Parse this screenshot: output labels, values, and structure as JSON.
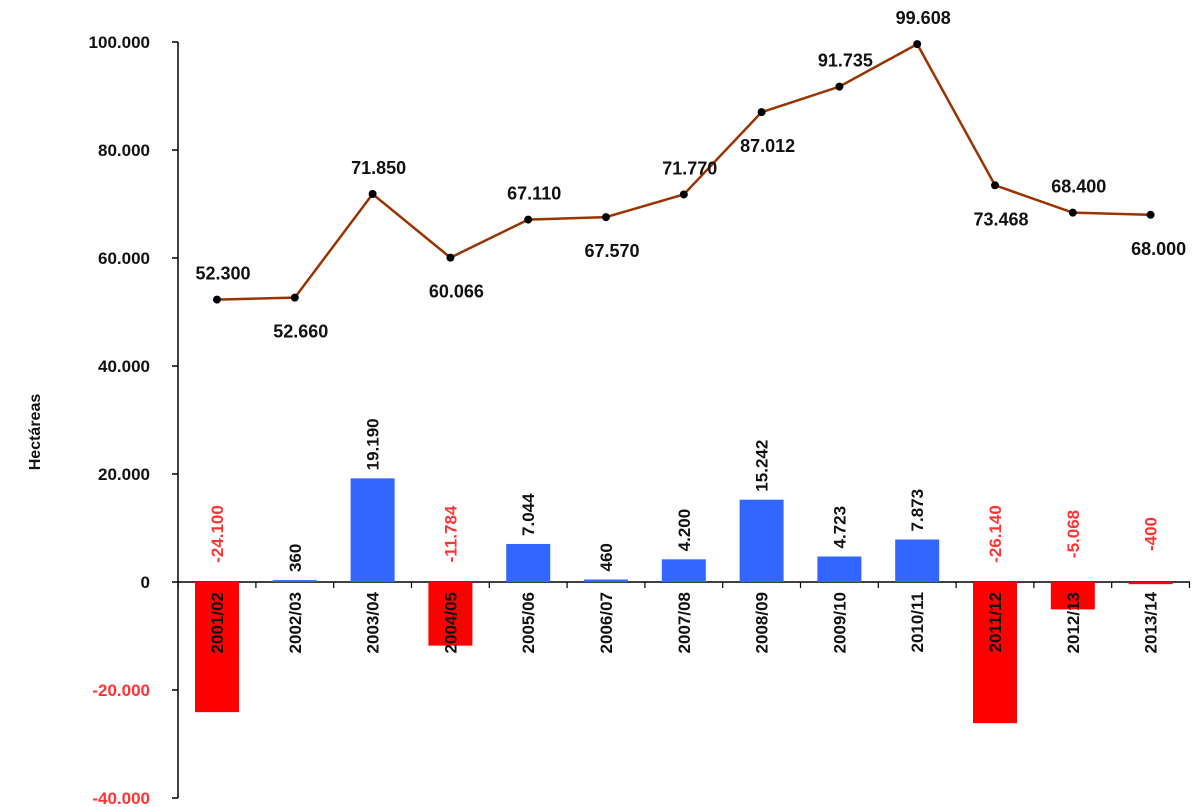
{
  "chart_data": {
    "type": "bar",
    "title": "",
    "ylabel": "Hectáreas",
    "ylim": [
      -40000,
      100000
    ],
    "yticks": [
      {
        "value": 100000,
        "label": "100.000"
      },
      {
        "value": 80000,
        "label": "80.000"
      },
      {
        "value": 60000,
        "label": "60.000"
      },
      {
        "value": 40000,
        "label": "40.000"
      },
      {
        "value": 20000,
        "label": "20.000"
      },
      {
        "value": 0,
        "label": "0"
      },
      {
        "value": -20000,
        "label": "-20.000"
      },
      {
        "value": -40000,
        "label": "-40.000"
      }
    ],
    "categories": [
      "2001/02",
      "2002/03",
      "2003/04",
      "2004/05",
      "2005/06",
      "2006/07",
      "2007/08",
      "2008/09",
      "2009/10",
      "2010/11",
      "2011/12",
      "2012/13",
      "2013/14"
    ],
    "series": [
      {
        "type": "bar",
        "values": [
          -24100,
          360,
          19190,
          -11784,
          7044,
          460,
          4200,
          15242,
          4723,
          7873,
          -26140,
          -5068,
          -400
        ],
        "labels": [
          "-24.100",
          "360",
          "19.190",
          "-11.784",
          "7.044",
          "460",
          "4.200",
          "15.242",
          "4.723",
          "7.873",
          "-26.140",
          "-5.068",
          "-400"
        ]
      },
      {
        "type": "line",
        "values": [
          52300,
          52660,
          71850,
          60066,
          67110,
          67570,
          71770,
          87012,
          91735,
          99608,
          73468,
          68400,
          68000
        ],
        "labels": [
          "52.300",
          "52.660",
          "71.850",
          "60.066",
          "67.110",
          "67.570",
          "71.770",
          "87.012",
          "91.735",
          "99.608",
          "73.468",
          "68.400",
          "68.000"
        ]
      }
    ],
    "colors": {
      "positive_bar": "#3366ff",
      "negative_bar": "#ff0000",
      "negative_text": "#ff3333",
      "line": "#993300",
      "marker": "#000000"
    },
    "grid": false,
    "legend": "none"
  }
}
